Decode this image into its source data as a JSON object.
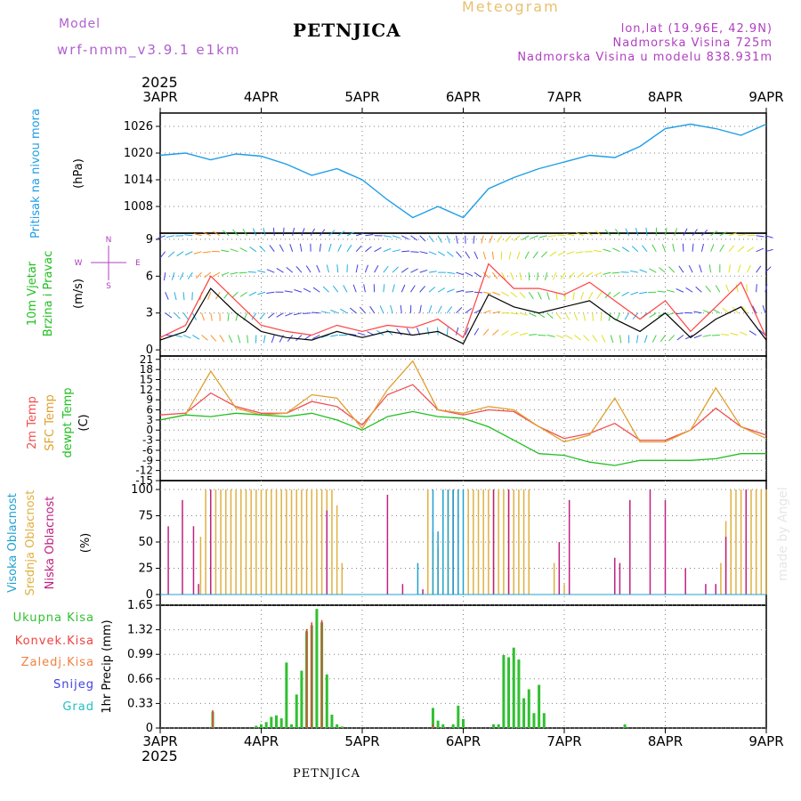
{
  "header": {
    "model_label": "Model",
    "model_name": "wrf-nmm_v3.9.1 e1km",
    "station": "PETNJICA",
    "product": "Meteogram",
    "lonlat": "lon,lat (19.96E, 42.9N)",
    "elevation": "Nadmorska Visina 725m",
    "elevation_model": "Nadmorska Visina u modelu 838.931m"
  },
  "footer": {
    "station": "PETNJICA",
    "credit": "made by Angel"
  },
  "colors": {
    "pressure": "#1e9ee6",
    "wind_speed": "#000000",
    "gust": "#ff4040",
    "temp2m": "#f05050",
    "sfc_temp": "#e0a030",
    "dewpt": "#20c020",
    "cloud_high": "#20a0d0",
    "cloud_mid": "#e0b040",
    "cloud_low": "#c02080",
    "precip_total": "#30c030",
    "precip_conv": "#f04040",
    "precip_freezing": "#f08040",
    "snow": "#4040e0",
    "graupel": "#20c0c0",
    "grid": "#808080"
  },
  "chart_data": [
    {
      "type": "line",
      "panel": "pressure",
      "year": "2025",
      "x_ticks": [
        "3APR",
        "4APR",
        "5APR",
        "6APR",
        "7APR",
        "8APR",
        "9APR"
      ],
      "ylabel_left": "Pritisak na nivou mora",
      "ylabel_unit": "(hPa)",
      "y_ticks": [
        1008,
        1014,
        1020,
        1026
      ],
      "ylim": [
        1002,
        1029
      ],
      "x_days": [
        0,
        0.25,
        0.5,
        0.75,
        1.0,
        1.25,
        1.5,
        1.75,
        2.0,
        2.25,
        2.5,
        2.75,
        3.0,
        3.25,
        3.5,
        3.75,
        4.0,
        4.25,
        4.5,
        4.75,
        5.0,
        5.25,
        5.5,
        5.75,
        6.0
      ],
      "series": [
        {
          "values": [
            1019.5,
            1020.0,
            1018.5,
            1019.8,
            1019.3,
            1017.5,
            1015.0,
            1016.5,
            1014.0,
            1009.5,
            1005.5,
            1008.0,
            1005.5,
            1012.0,
            1014.5,
            1016.5,
            1018.0,
            1019.5,
            1019.0,
            1021.5,
            1025.5,
            1026.5,
            1025.5,
            1024.0,
            1026.5
          ]
        }
      ]
    },
    {
      "type": "line",
      "panel": "wind",
      "ylabel_left": [
        "10m Vjetar",
        "Brzina i Pravac"
      ],
      "ylabel_unit": "(m/s)",
      "compass": [
        "N",
        "W",
        "E",
        "S"
      ],
      "y_ticks": [
        0,
        3,
        6,
        9
      ],
      "ylim": [
        -0.5,
        9.5
      ],
      "x_days": [
        0,
        0.25,
        0.5,
        0.75,
        1.0,
        1.25,
        1.5,
        1.75,
        2.0,
        2.25,
        2.5,
        2.75,
        3.0,
        3.25,
        3.5,
        3.75,
        4.0,
        4.25,
        4.5,
        4.75,
        5.0,
        5.25,
        5.5,
        5.75,
        6.0
      ],
      "series": [
        {
          "name": "speed",
          "values": [
            0.8,
            1.5,
            5.0,
            3.0,
            1.5,
            1.0,
            0.8,
            1.5,
            1.0,
            1.5,
            1.2,
            1.5,
            0.5,
            4.5,
            3.5,
            3.0,
            3.5,
            4.0,
            2.5,
            1.5,
            3.0,
            1.0,
            2.5,
            3.5,
            0.8
          ]
        },
        {
          "name": "gust",
          "values": [
            1.0,
            2.0,
            6.0,
            4.0,
            2.0,
            1.5,
            1.2,
            2.0,
            1.5,
            2.0,
            1.8,
            2.5,
            1.0,
            7.0,
            5.0,
            5.0,
            4.5,
            5.5,
            4.0,
            2.5,
            4.0,
            1.5,
            3.5,
            5.5,
            1.0
          ]
        }
      ]
    },
    {
      "type": "line",
      "panel": "temperature",
      "ylabel_left": [
        "2m Temp",
        "SFC Temp",
        "dewpt Temp"
      ],
      "ylabel_unit": "(C)",
      "y_ticks": [
        -15,
        -12,
        -9,
        -6,
        -3,
        0,
        3,
        6,
        9,
        12,
        15,
        18,
        21
      ],
      "ylim": [
        -15,
        22
      ],
      "x_days": [
        0,
        0.25,
        0.5,
        0.75,
        1.0,
        1.25,
        1.5,
        1.75,
        2.0,
        2.25,
        2.5,
        2.75,
        3.0,
        3.25,
        3.5,
        3.75,
        4.0,
        4.25,
        4.5,
        4.75,
        5.0,
        5.25,
        5.5,
        5.75,
        6.0
      ],
      "series": [
        {
          "name": "2m Temp",
          "values": [
            4.5,
            5.0,
            11.0,
            7.0,
            5.0,
            5.0,
            8.5,
            7.0,
            1.5,
            10.5,
            13.5,
            6.0,
            4.5,
            6.0,
            5.5,
            1.0,
            -2.5,
            -1.0,
            2.0,
            -3.0,
            -3.0,
            0.0,
            6.5,
            1.0,
            -1.5
          ]
        },
        {
          "name": "SFC Temp",
          "values": [
            3.0,
            4.5,
            17.5,
            6.5,
            4.5,
            5.0,
            10.5,
            9.5,
            0.5,
            12.0,
            20.5,
            6.0,
            5.0,
            7.0,
            6.0,
            1.0,
            -3.5,
            -1.5,
            9.5,
            -3.5,
            -3.5,
            0.0,
            12.5,
            1.0,
            -2.5
          ]
        },
        {
          "name": "dewpt Temp",
          "values": [
            3.0,
            4.5,
            4.0,
            5.0,
            4.5,
            4.0,
            5.0,
            3.0,
            0.0,
            4.0,
            5.5,
            4.0,
            3.5,
            1.0,
            -3.0,
            -7.0,
            -7.5,
            -9.5,
            -10.5,
            -9.0,
            -9.0,
            -9.0,
            -8.5,
            -7.0,
            -7.0
          ]
        }
      ]
    },
    {
      "type": "bar",
      "panel": "clouds",
      "ylabel_left": [
        "Visoka Oblacnost",
        "Srednja Oblacnost",
        "Niska Oblacnost"
      ],
      "ylabel_unit": "(%)",
      "y_ticks": [
        0,
        25,
        50,
        75,
        100
      ],
      "ylim": [
        0,
        100
      ],
      "series": [
        {
          "name": "Visoka Oblacnost",
          "x_days": [
            2.7,
            2.75,
            2.8,
            2.85,
            2.9,
            2.95,
            3.0,
            2.55
          ],
          "values": [
            100,
            60,
            100,
            100,
            100,
            100,
            100,
            30
          ]
        },
        {
          "name": "Srednja Oblacnost",
          "x_days": [
            0.4,
            0.45,
            0.5,
            0.55,
            0.6,
            0.65,
            0.7,
            0.75,
            0.8,
            0.85,
            0.9,
            0.95,
            1.0,
            1.05,
            1.1,
            1.15,
            1.2,
            1.25,
            1.3,
            1.35,
            1.4,
            1.45,
            1.5,
            1.55,
            1.6,
            1.65,
            1.7,
            1.75,
            1.8,
            2.65,
            2.7,
            2.75,
            2.85,
            2.9,
            2.95,
            3.05,
            3.1,
            3.15,
            3.2,
            3.25,
            3.3,
            3.35,
            3.4,
            3.45,
            3.5,
            3.55,
            3.6,
            3.65,
            3.9,
            4.0,
            5.55,
            5.6,
            5.65,
            5.7,
            5.75,
            5.8,
            5.85,
            5.9,
            5.95,
            6.0
          ],
          "values": [
            55,
            100,
            100,
            100,
            100,
            100,
            100,
            100,
            100,
            100,
            100,
            100,
            100,
            100,
            100,
            100,
            100,
            100,
            100,
            100,
            100,
            100,
            100,
            100,
            100,
            100,
            100,
            85,
            30,
            100,
            60,
            45,
            100,
            100,
            100,
            100,
            100,
            100,
            100,
            100,
            100,
            100,
            100,
            100,
            100,
            100,
            100,
            100,
            30,
            10,
            30,
            70,
            100,
            100,
            100,
            100,
            100,
            100,
            100,
            100
          ]
        },
        {
          "name": "Niska Oblacnost",
          "x_days": [
            0.08,
            0.22,
            0.33,
            0.38,
            0.5,
            1.65,
            2.25,
            2.4,
            2.6,
            2.9,
            3.3,
            3.45,
            3.95,
            4.05,
            4.5,
            4.55,
            4.65,
            4.85,
            5.0,
            5.2,
            5.4,
            5.5,
            5.6,
            5.8
          ],
          "values": [
            65,
            90,
            65,
            10,
            100,
            80,
            95,
            10,
            5,
            100,
            100,
            100,
            50,
            90,
            35,
            30,
            90,
            100,
            90,
            25,
            10,
            10,
            55,
            100
          ]
        }
      ]
    },
    {
      "type": "bar",
      "panel": "precip",
      "legend": [
        "Ukupna Kisa",
        "Konvek.Kisa",
        "Zaledj.Kisa",
        "Snijeg",
        "Grad"
      ],
      "ylabel_unit": "1hr Precip (mm)",
      "y_ticks": [
        0,
        0.33,
        0.66,
        0.99,
        1.32,
        1.65
      ],
      "y_tick_labels": [
        "0",
        "0.33",
        "0.66",
        "0.99",
        "1.32",
        "1.65"
      ],
      "ylim": [
        0,
        1.65
      ],
      "x_ticks_bottom": [
        "3APR",
        "4APR",
        "5APR",
        "6APR",
        "7APR",
        "8APR",
        "9APR"
      ],
      "year_bottom": "2025",
      "x_days": [
        0.52,
        0.95,
        1.0,
        1.05,
        1.1,
        1.15,
        1.2,
        1.25,
        1.3,
        1.35,
        1.4,
        1.45,
        1.5,
        1.55,
        1.6,
        1.65,
        1.7,
        1.75,
        1.8,
        2.7,
        2.75,
        2.8,
        2.9,
        2.95,
        3.0,
        3.3,
        3.35,
        3.4,
        3.45,
        3.5,
        3.55,
        3.6,
        3.65,
        3.7,
        3.75,
        3.8,
        4.6
      ],
      "series": [
        {
          "name": "Ukupna Kisa",
          "values": [
            0.22,
            0.03,
            0.05,
            0.08,
            0.15,
            0.17,
            0.13,
            0.88,
            0.05,
            0.45,
            0.77,
            1.3,
            1.38,
            1.6,
            1.42,
            0.72,
            0.18,
            0.05,
            0.02,
            0.27,
            0.1,
            0.05,
            0.05,
            0.3,
            0.12,
            0.05,
            0.05,
            0.98,
            0.95,
            1.08,
            0.92,
            0.4,
            0.52,
            0.2,
            0.58,
            0.2,
            0.05
          ]
        },
        {
          "name": "Konvek.Kisa",
          "values": [
            0.24,
            0,
            0,
            0,
            0,
            0,
            0,
            0,
            0,
            0,
            0,
            1.33,
            1.42,
            0,
            1.45,
            0,
            0,
            0,
            0,
            0.05,
            0,
            0,
            0,
            0,
            0,
            0,
            0,
            0,
            0,
            0,
            0,
            0,
            0,
            0,
            0,
            0,
            0
          ]
        }
      ]
    }
  ]
}
